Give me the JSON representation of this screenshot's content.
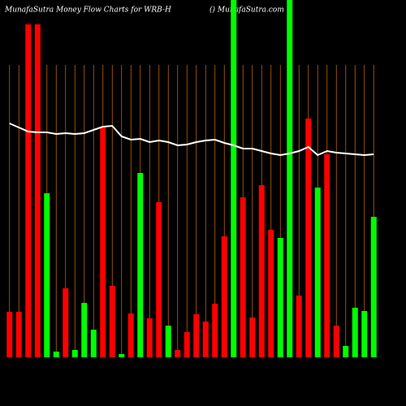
{
  "chart_data": {
    "type": "bar",
    "title": "MunafaSutra  Money Flow  Charts for WRB-H",
    "subtitle": "() MunafaSutra.com",
    "categories": [
      null,
      null,
      null,
      null,
      null,
      null,
      null,
      null,
      null,
      null,
      null,
      null,
      null,
      null,
      null,
      null,
      null,
      null,
      null,
      null,
      null,
      null,
      null,
      null,
      null,
      null,
      null,
      null,
      null,
      null,
      null,
      null,
      null,
      null,
      null,
      null,
      null,
      null,
      null,
      null
    ],
    "values": [
      56,
      56,
      410,
      410,
      202,
      7,
      85,
      9,
      67,
      34,
      283,
      88,
      4,
      54,
      227,
      48,
      191,
      39,
      9,
      31,
      53,
      44,
      66,
      149,
      440,
      197,
      49,
      212,
      157,
      147,
      440,
      76,
      294,
      209,
      250,
      39,
      14,
      61,
      57,
      173
    ],
    "bar_colors": [
      "#ff0000",
      "#ff0000",
      "#ff0000",
      "#ff0000",
      "#00ff00",
      "#00ff00",
      "#ff0000",
      "#00ff00",
      "#00ff00",
      "#00ff00",
      "#ff0000",
      "#ff0000",
      "#00ff00",
      "#ff0000",
      "#00ff00",
      "#ff0000",
      "#ff0000",
      "#00ff00",
      "#ff0000",
      "#ff0000",
      "#ff0000",
      "#ff0000",
      "#ff0000",
      "#ff0000",
      "#00ff00",
      "#ff0000",
      "#ff0000",
      "#ff0000",
      "#ff0000",
      "#00ff00",
      "#00ff00",
      "#ff0000",
      "#ff0000",
      "#00ff00",
      "#ff0000",
      "#ff0000",
      "#00ff00",
      "#00ff00",
      "#00ff00",
      "#00ff00"
    ],
    "line_values": [
      288,
      283,
      278,
      277,
      277,
      275,
      276,
      275,
      276,
      280,
      284,
      285,
      272,
      268,
      269,
      265,
      267,
      265,
      261,
      262,
      265,
      267,
      268,
      264,
      261,
      257,
      257,
      254,
      251,
      249,
      251,
      254,
      259,
      249,
      254,
      252,
      251,
      250,
      249,
      250
    ],
    "line_color": "#ffffff",
    "grid_color": "#b8650a",
    "ylim": [
      0,
      440
    ],
    "grid": true
  }
}
